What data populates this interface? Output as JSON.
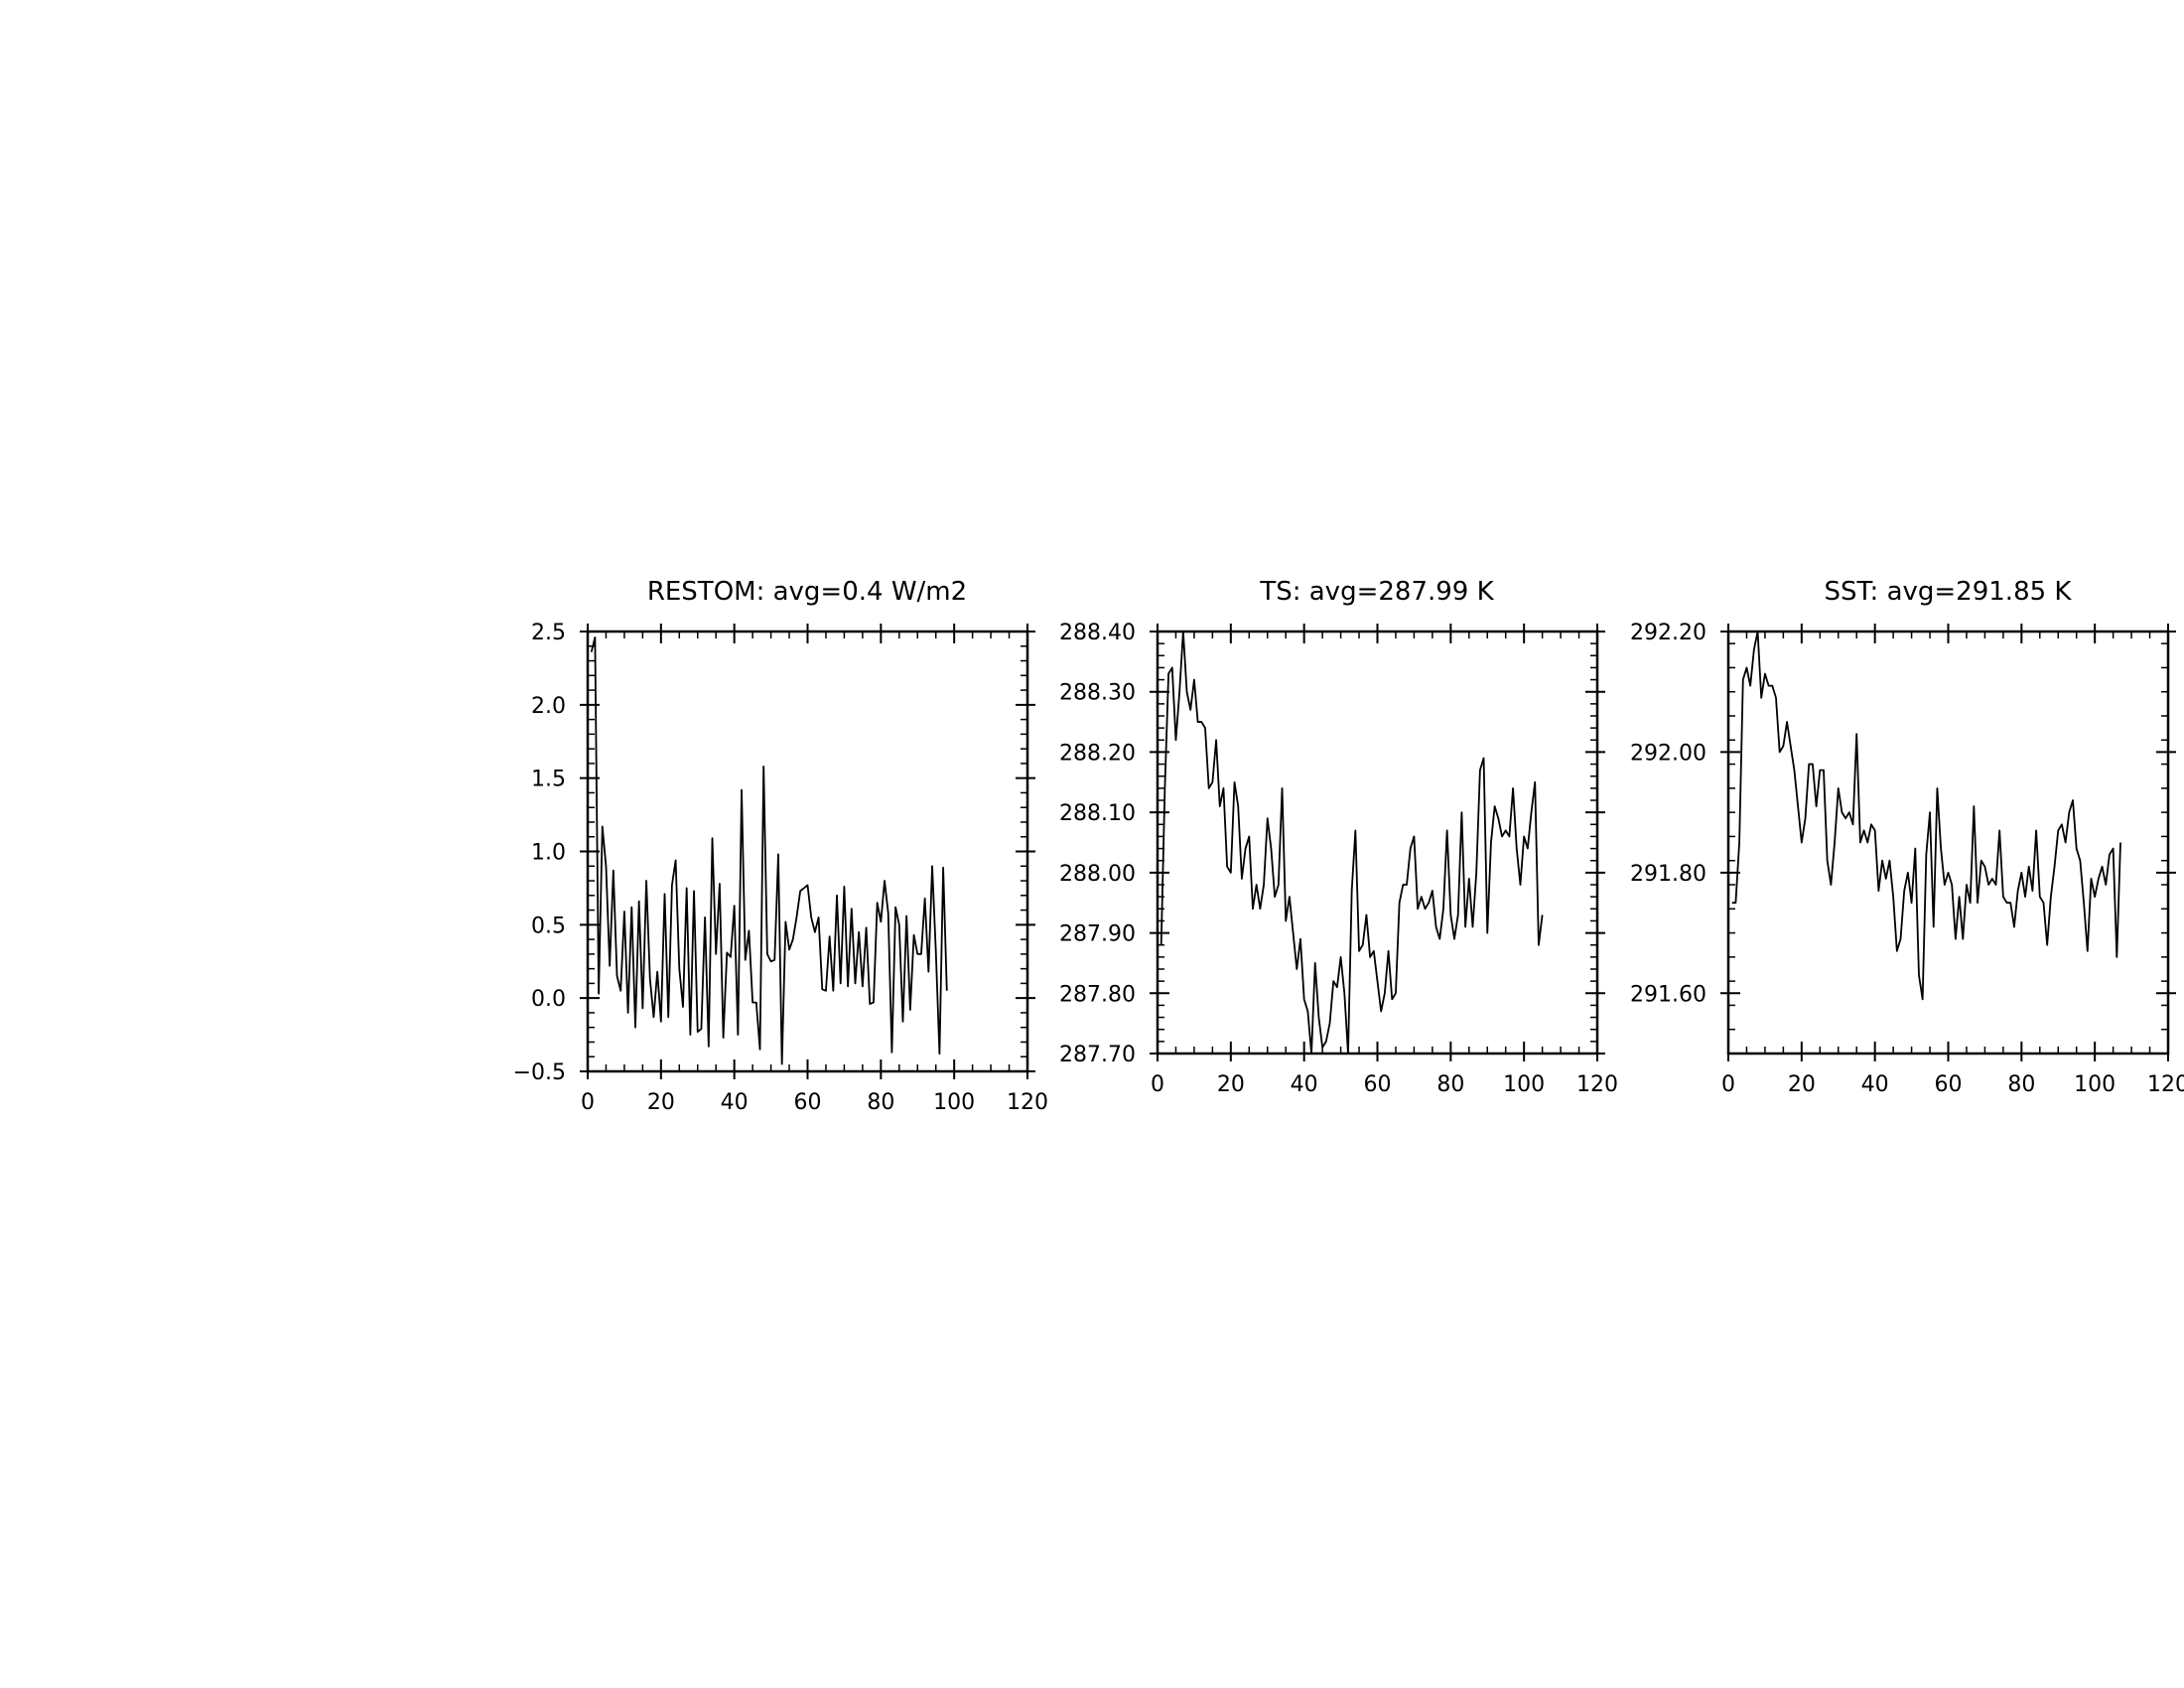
{
  "chart_data": [
    {
      "type": "line",
      "title": "RESTOM: avg=0.4 W/m2",
      "xlabel": "",
      "ylabel": "",
      "xlim": [
        0,
        120
      ],
      "ylim": [
        -0.5,
        2.5
      ],
      "xticks": [
        0,
        20,
        40,
        60,
        80,
        100,
        120
      ],
      "xtick_labels": [
        "0",
        "20",
        "40",
        "60",
        "80",
        "100",
        "120"
      ],
      "yticks": [
        -0.5,
        0,
        0.5,
        1,
        1.5,
        2,
        2.5
      ],
      "ytick_labels": [
        "−0.5",
        "0.0",
        "0.5",
        "1.0",
        "1.5",
        "2.0",
        "2.5"
      ],
      "x_start": 1,
      "series": [
        {
          "values": [
            2.36,
            2.46,
            0.03,
            1.17,
            0.9,
            0.22,
            0.87,
            0.15,
            0.05,
            0.59,
            -0.1,
            0.62,
            -0.2,
            0.66,
            -0.07,
            0.8,
            0.13,
            -0.13,
            0.18,
            -0.16,
            0.71,
            -0.13,
            0.77,
            0.94,
            0.2,
            -0.06,
            0.75,
            -0.25,
            0.73,
            -0.23,
            -0.21,
            0.55,
            -0.33,
            1.09,
            0.3,
            0.78,
            -0.27,
            0.31,
            0.28,
            0.63,
            -0.25,
            1.42,
            0.26,
            0.46,
            -0.03,
            -0.03,
            -0.35,
            1.58,
            0.3,
            0.25,
            0.26,
            0.98,
            -0.45,
            0.52,
            0.33,
            0.4,
            0.55,
            0.73,
            0.75,
            0.77,
            0.55,
            0.45,
            0.55,
            0.06,
            0.05,
            0.42,
            0.05,
            0.7,
            0.1,
            0.76,
            0.08,
            0.61,
            0.1,
            0.45,
            0.08,
            0.48,
            -0.04,
            -0.03,
            0.65,
            0.52,
            0.8,
            0.58,
            -0.37,
            0.62,
            0.5,
            -0.16,
            0.56,
            -0.08,
            0.43,
            0.3,
            0.3,
            0.68,
            0.18,
            0.9,
            0.32,
            -0.38,
            0.89,
            0.05
          ]
        }
      ]
    },
    {
      "type": "line",
      "title": "TS: avg=287.99 K",
      "xlabel": "",
      "ylabel": "",
      "xlim": [
        0,
        120
      ],
      "ylim": [
        287.7,
        288.4
      ],
      "xticks": [
        0,
        20,
        40,
        60,
        80,
        100,
        120
      ],
      "xtick_labels": [
        "0",
        "20",
        "40",
        "60",
        "80",
        "100",
        "120"
      ],
      "yticks": [
        287.7,
        287.8,
        287.9,
        288.0,
        288.1,
        288.2,
        288.3,
        288.4
      ],
      "ytick_labels": [
        "287.70",
        "287.80",
        "287.90",
        "288.00",
        "288.10",
        "288.20",
        "288.30",
        "288.40"
      ],
      "x_start": 1,
      "series": [
        {
          "values": [
            287.88,
            288.14,
            288.33,
            288.34,
            288.22,
            288.3,
            288.4,
            288.3,
            288.27,
            288.32,
            288.25,
            288.25,
            288.24,
            288.14,
            288.15,
            288.22,
            288.11,
            288.14,
            288.01,
            288.0,
            288.15,
            288.11,
            287.99,
            288.04,
            288.06,
            287.94,
            287.98,
            287.94,
            287.98,
            288.09,
            288.04,
            287.96,
            287.98,
            288.14,
            287.92,
            287.96,
            287.9,
            287.84,
            287.89,
            287.79,
            287.77,
            287.7,
            287.85,
            287.76,
            287.71,
            287.72,
            287.75,
            287.82,
            287.81,
            287.86,
            287.8,
            287.7,
            287.97,
            288.07,
            287.87,
            287.88,
            287.93,
            287.86,
            287.87,
            287.82,
            287.77,
            287.8,
            287.87,
            287.79,
            287.8,
            287.95,
            287.98,
            287.98,
            288.04,
            288.06,
            287.94,
            287.96,
            287.94,
            287.95,
            287.97,
            287.91,
            287.89,
            287.94,
            288.07,
            287.93,
            287.89,
            287.93,
            288.1,
            287.91,
            287.99,
            287.91,
            288.0,
            288.17,
            288.19,
            287.9,
            288.05,
            288.11,
            288.09,
            288.06,
            288.07,
            288.06,
            288.14,
            288.04,
            287.98,
            288.06,
            288.04,
            288.1,
            288.15,
            287.88,
            287.93
          ]
        }
      ]
    },
    {
      "type": "line",
      "title": "SST: avg=291.85 K",
      "xlabel": "",
      "ylabel": "",
      "xlim": [
        0,
        120
      ],
      "ylim": [
        291.5,
        292.2
      ],
      "xticks": [
        0,
        20,
        40,
        60,
        80,
        100,
        120
      ],
      "xtick_labels": [
        "0",
        "20",
        "40",
        "60",
        "80",
        "100",
        "120"
      ],
      "yticks": [
        291.6,
        291.8,
        292.0,
        292.2
      ],
      "ytick_labels": [
        "291.60",
        "291.80",
        "292.00",
        "292.20"
      ],
      "x_start": 1,
      "series": [
        {
          "values": [
            291.75,
            291.75,
            291.85,
            292.12,
            292.14,
            292.11,
            292.17,
            292.2,
            292.09,
            292.13,
            292.11,
            292.11,
            292.09,
            292.0,
            292.01,
            292.05,
            292.01,
            291.97,
            291.91,
            291.85,
            291.89,
            291.98,
            291.98,
            291.91,
            291.97,
            291.97,
            291.82,
            291.78,
            291.85,
            291.94,
            291.9,
            291.89,
            291.9,
            291.88,
            292.03,
            291.85,
            291.87,
            291.85,
            291.88,
            291.87,
            291.77,
            291.82,
            291.79,
            291.82,
            291.76,
            291.67,
            291.69,
            291.77,
            291.8,
            291.75,
            291.84,
            291.63,
            291.59,
            291.83,
            291.9,
            291.71,
            291.94,
            291.84,
            291.78,
            291.8,
            291.78,
            291.69,
            291.76,
            291.69,
            291.78,
            291.75,
            291.91,
            291.75,
            291.82,
            291.81,
            291.78,
            291.79,
            291.78,
            291.87,
            291.76,
            291.75,
            291.75,
            291.71,
            291.77,
            291.8,
            291.76,
            291.81,
            291.77,
            291.87,
            291.76,
            291.75,
            291.68,
            291.76,
            291.81,
            291.87,
            291.88,
            291.85,
            291.9,
            291.92,
            291.84,
            291.82,
            291.75,
            291.67,
            291.79,
            291.76,
            291.79,
            291.81,
            291.78,
            291.83,
            291.84,
            291.66,
            291.85
          ]
        }
      ]
    }
  ]
}
